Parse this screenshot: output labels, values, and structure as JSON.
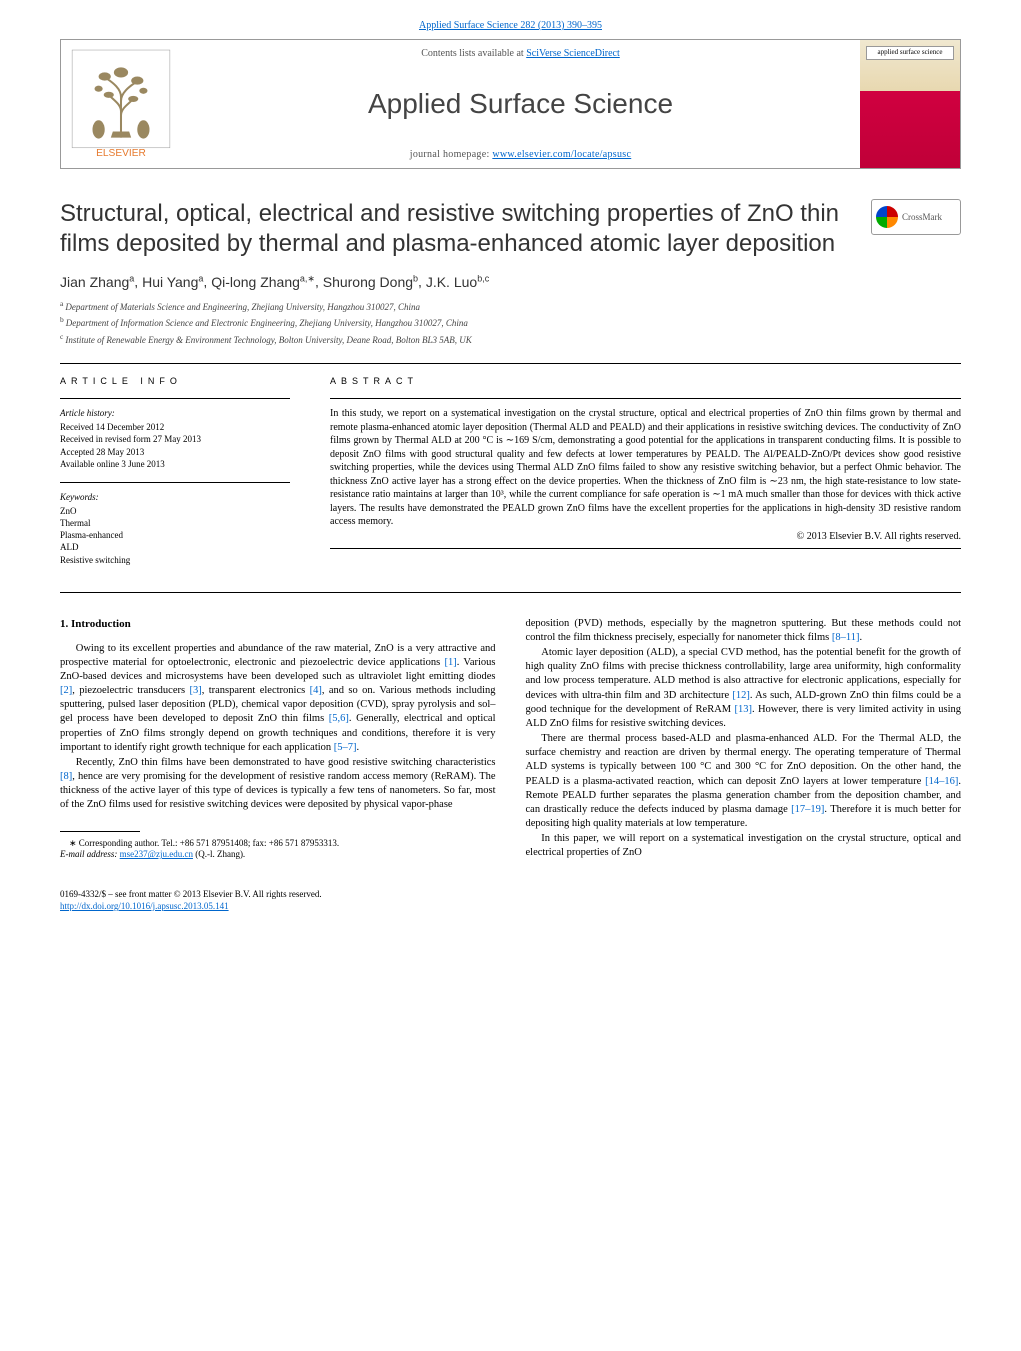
{
  "journalRef": {
    "text": "Applied Surface Science 282 (2013) 390–395",
    "href": "#"
  },
  "header": {
    "contentsLine": "Contents lists available at ",
    "contentsLinkText": "SciVerse ScienceDirect",
    "journalName": "Applied Surface Science",
    "homepageLabel": "journal homepage: ",
    "homepageUrl": "www.elsevier.com/locate/apsusc",
    "publisherName": "ELSEVIER",
    "coverTitle": "applied surface science"
  },
  "title": "Structural, optical, electrical and resistive switching properties of ZnO thin films deposited by thermal and plasma-enhanced atomic layer deposition",
  "crossmark": "CrossMark",
  "authors": [
    {
      "name": "Jian Zhang",
      "aff": "a"
    },
    {
      "name": "Hui Yang",
      "aff": "a"
    },
    {
      "name": "Qi-long Zhang",
      "aff": "a,∗"
    },
    {
      "name": "Shurong Dong",
      "aff": "b"
    },
    {
      "name": "J.K. Luo",
      "aff": "b,c"
    }
  ],
  "affiliations": [
    {
      "sup": "a",
      "text": "Department of Materials Science and Engineering, Zhejiang University, Hangzhou 310027, China"
    },
    {
      "sup": "b",
      "text": "Department of Information Science and Electronic Engineering, Zhejiang University, Hangzhou 310027, China"
    },
    {
      "sup": "c",
      "text": "Institute of Renewable Energy & Environment Technology, Bolton University, Deane Road, Bolton BL3 5AB, UK"
    }
  ],
  "articleInfo": {
    "heading": "ARTICLE INFO",
    "history": {
      "label": "Article history:",
      "items": [
        "Received 14 December 2012",
        "Received in revised form 27 May 2013",
        "Accepted 28 May 2013",
        "Available online 3 June 2013"
      ]
    },
    "keywords": {
      "label": "Keywords:",
      "items": [
        "ZnO",
        "Thermal",
        "Plasma-enhanced",
        "ALD",
        "Resistive switching"
      ]
    }
  },
  "abstract": {
    "heading": "ABSTRACT",
    "text": "In this study, we report on a systematical investigation on the crystal structure, optical and electrical properties of ZnO thin films grown by thermal and remote plasma-enhanced atomic layer deposition (Thermal ALD and PEALD) and their applications in resistive switching devices. The conductivity of ZnO films grown by Thermal ALD at 200 °C is ∼169 S/cm, demonstrating a good potential for the applications in transparent conducting films. It is possible to deposit ZnO films with good structural quality and few defects at lower temperatures by PEALD. The Al/PEALD-ZnO/Pt devices show good resistive switching properties, while the devices using Thermal ALD ZnO films failed to show any resistive switching behavior, but a perfect Ohmic behavior. The thickness ZnO active layer has a strong effect on the device properties. When the thickness of ZnO film is ∼23 nm, the high state-resistance to low state-resistance ratio maintains at larger than 10³, while the current compliance for safe operation is ∼1 mA much smaller than those for devices with thick active layers. The results have demonstrated the PEALD grown ZnO films have the excellent properties for the applications in high-density 3D resistive random access memory.",
    "copyright": "© 2013 Elsevier B.V. All rights reserved."
  },
  "body": {
    "heading": "1.  Introduction",
    "paragraphs": [
      "Owing to its excellent properties and abundance of the raw material, ZnO is a very attractive and prospective material for optoelectronic, electronic and piezoelectric device applications [1]. Various ZnO-based devices and microsystems have been developed such as ultraviolet light emitting diodes [2], piezoelectric transducers [3], transparent electronics [4], and so on. Various methods including sputtering, pulsed laser deposition (PLD), chemical vapor deposition (CVD), spray pyrolysis and sol–gel process have been developed to deposit ZnO thin films [5,6]. Generally, electrical and optical properties of ZnO films strongly depend on growth techniques and conditions, therefore it is very important to identify right growth technique for each application [5–7].",
      "Recently, ZnO thin films have been demonstrated to have good resistive switching characteristics [8], hence are very promising for the development of resistive random access memory (ReRAM). The thickness of the active layer of this type of devices is typically a few tens of nanometers. So far, most of the ZnO films used for resistive switching devices were deposited by physical vapor-phase",
      "deposition (PVD) methods, especially by the magnetron sputtering. But these methods could not control the film thickness precisely, especially for nanometer thick films [8–11].",
      "Atomic layer deposition (ALD), a special CVD method, has the potential benefit for the growth of high quality ZnO films with precise thickness controllability, large area uniformity, high conformality and low process temperature. ALD method is also attractive for electronic applications, especially for devices with ultra-thin film and 3D architecture [12]. As such, ALD-grown ZnO thin films could be a good technique for the development of ReRAM [13]. However, there is very limited activity in using ALD ZnO films for resistive switching devices.",
      "There are thermal process based-ALD and plasma-enhanced ALD. For the Thermal ALD, the surface chemistry and reaction are driven by thermal energy. The operating temperature of Thermal ALD systems is typically between 100 °C and 300 °C for ZnO deposition. On the other hand, the PEALD is a plasma-activated reaction, which can deposit ZnO layers at lower temperature [14–16]. Remote PEALD further separates the plasma generation chamber from the deposition chamber, and can drastically reduce the defects induced by plasma damage [17–19]. Therefore it is much better for depositing high quality materials at low temperature.",
      "In this paper, we will report on a systematical investigation on the crystal structure, optical and electrical properties of ZnO"
    ]
  },
  "corresponding": {
    "star": "∗",
    "text": "Corresponding author. Tel.: +86 571 87951408; fax: +86 571 87953313.",
    "emailLabel": "E-mail address: ",
    "email": "mse237@zju.edu.cn",
    "emailSuffix": " (Q.-l. Zhang)."
  },
  "footer": {
    "issn": "0169-4332/$ – see front matter © 2013 Elsevier B.V. All rights reserved.",
    "doi": "http://dx.doi.org/10.1016/j.apsusc.2013.05.141"
  },
  "refs": {
    "1": "[1]",
    "2": "[2]",
    "3": "[3]",
    "4": "[4]",
    "56": "[5,6]",
    "57": "[5–7]",
    "8": "[8]",
    "811": "[8–11]",
    "12": "[12]",
    "13": "[13]",
    "1416": "[14–16]",
    "1719": "[17–19]"
  },
  "colors": {
    "link": "#0066cc",
    "text": "#000000",
    "border": "#999999",
    "headingGrey": "#444444"
  }
}
